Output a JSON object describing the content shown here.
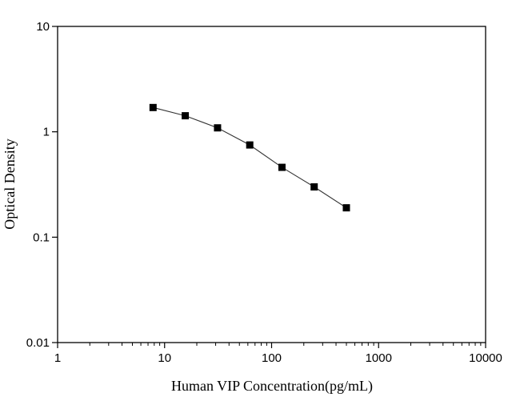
{
  "chart_data": {
    "type": "line",
    "title": "",
    "xlabel": "Human VIP Concentration(pg/mL)",
    "ylabel": "Optical Density",
    "x_scale": "log",
    "y_scale": "log",
    "xlim": [
      1,
      10000
    ],
    "ylim": [
      0.01,
      10
    ],
    "x_ticks": [
      "1",
      "10",
      "100",
      "1000",
      "10000"
    ],
    "y_ticks": [
      "0.01",
      "0.1",
      "1",
      "10"
    ],
    "grid": false,
    "marker": "square",
    "colors": {
      "line": "#333333",
      "marker": "#000000"
    },
    "series": [
      {
        "x": [
          7.8,
          15.6,
          31.25,
          62.5,
          125,
          250,
          500
        ],
        "y": [
          1.7,
          1.42,
          1.09,
          0.75,
          0.46,
          0.3,
          0.19
        ]
      }
    ]
  }
}
